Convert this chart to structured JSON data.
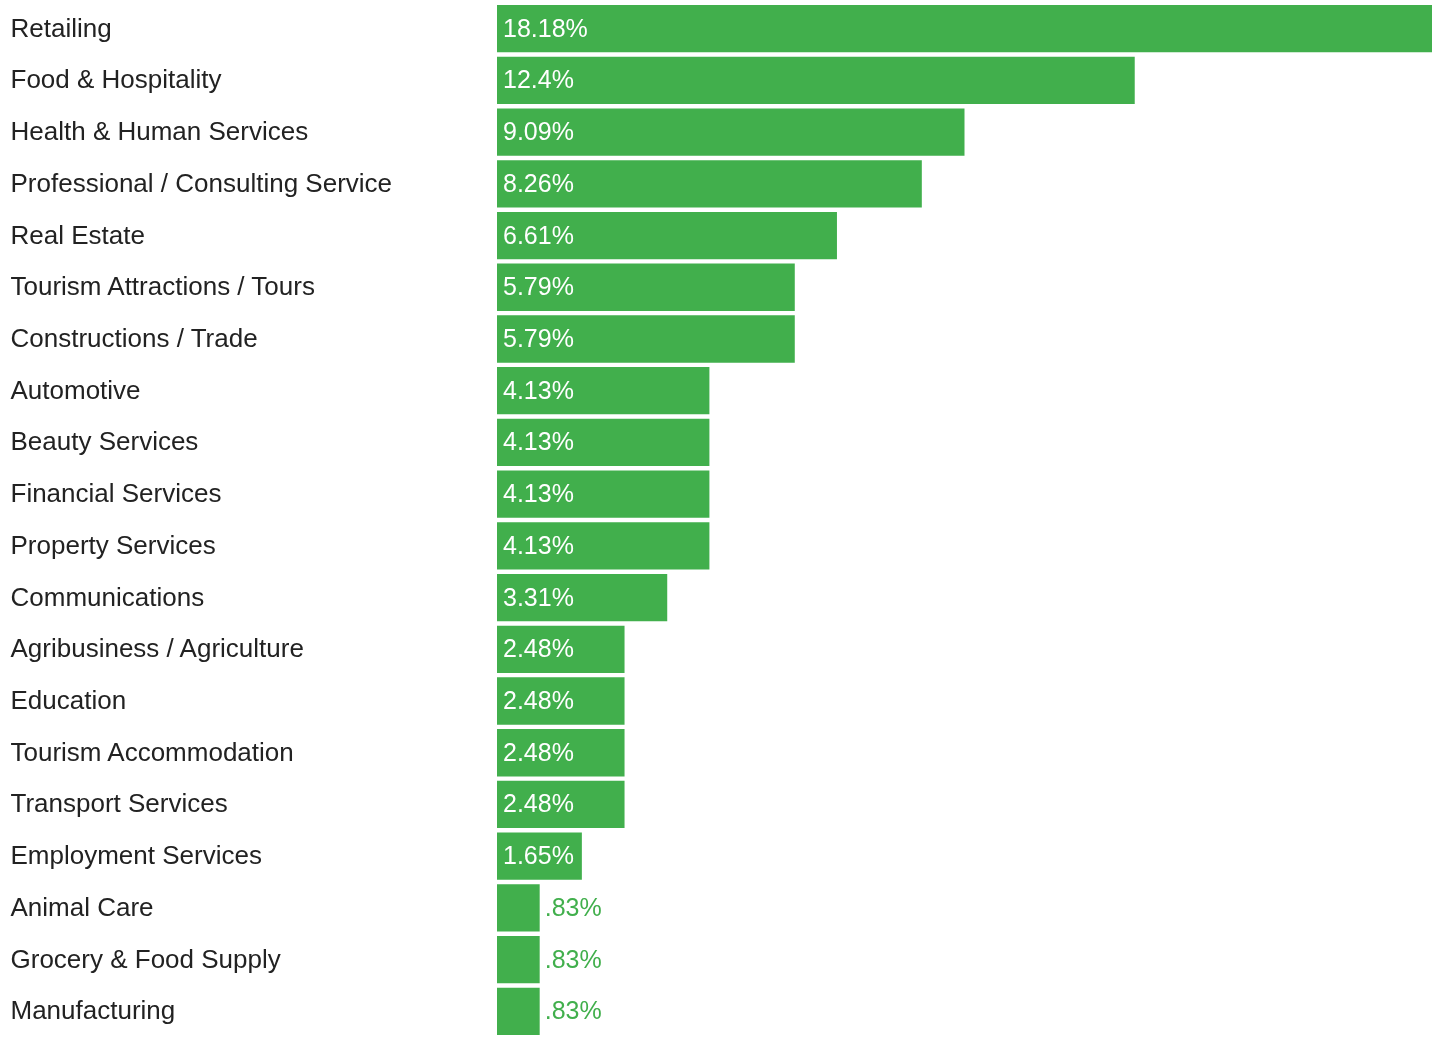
{
  "chart_data": {
    "type": "bar",
    "orientation": "horizontal",
    "categories": [
      "Retailing",
      "Food & Hospitality",
      "Health & Human Services",
      "Professional / Consulting Service",
      "Real Estate",
      "Tourism Attractions / Tours",
      "Constructions / Trade",
      "Automotive",
      "Beauty Services",
      "Financial Services",
      "Property Services",
      "Communications",
      "Agribusiness / Agriculture",
      "Education",
      "Tourism Accommodation",
      "Transport Services",
      "Employment Services",
      "Animal Care",
      "Grocery & Food Supply",
      "Manufacturing"
    ],
    "values": [
      18.18,
      12.4,
      9.09,
      8.26,
      6.61,
      5.79,
      5.79,
      4.13,
      4.13,
      4.13,
      4.13,
      3.31,
      2.48,
      2.48,
      2.48,
      2.48,
      1.65,
      0.83,
      0.83,
      0.83
    ],
    "value_labels": [
      "18.18%",
      "12.4%",
      "9.09%",
      "8.26%",
      "6.61%",
      "5.79%",
      "5.79%",
      "4.13%",
      "4.13%",
      "4.13%",
      "4.13%",
      "3.31%",
      "2.48%",
      "2.48%",
      "2.48%",
      "2.48%",
      "1.65%",
      ".83%",
      ".83%",
      ".83%"
    ],
    "color": "#41af4c"
  }
}
